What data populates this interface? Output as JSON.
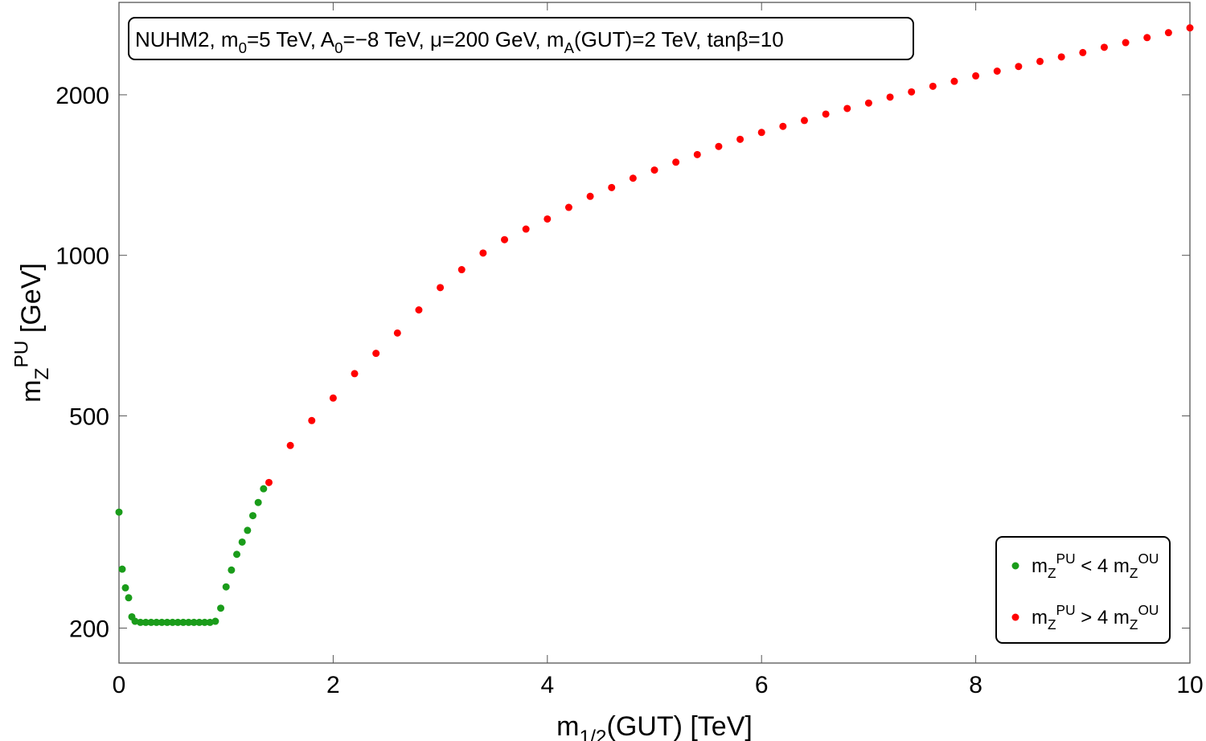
{
  "chart_data": {
    "type": "scatter",
    "title": "NUHM2, m_{0}=5 TeV, A_{0}=−8 TeV, μ=200 GeV, m_{A}(GUT)=2 TeV, tanβ=10",
    "x_label": "m_{1/2}(GUT) [TeV]",
    "y_label": "m_{Z}^{PU} [GeV]",
    "xlim": [
      0,
      10
    ],
    "ylim": [
      172,
      2980
    ],
    "log_y": true,
    "xticks": [
      0,
      2,
      4,
      6,
      8,
      10
    ],
    "yticks": [
      200,
      500,
      1000,
      2000
    ],
    "legend": "bottom-right",
    "series": [
      {
        "name": "m_{Z}^{PU} < 4 m_{Z}^{OU}",
        "color": "#1a9c1a",
        "x": [
          0,
          0.03,
          0.06,
          0.09,
          0.12,
          0.15,
          0.2,
          0.25,
          0.3,
          0.35,
          0.4,
          0.45,
          0.5,
          0.55,
          0.6,
          0.65,
          0.7,
          0.75,
          0.8,
          0.85,
          0.9,
          0.95,
          1.0,
          1.05,
          1.1,
          1.15,
          1.2,
          1.25,
          1.3,
          1.35
        ],
        "values": [
          330,
          258,
          238,
          228,
          210,
          206,
          205,
          205,
          205,
          205,
          205,
          205,
          205,
          205,
          205,
          205,
          205,
          205,
          205,
          205,
          206,
          218,
          239,
          257,
          275,
          290,
          305,
          325,
          344,
          365
        ]
      },
      {
        "name": "m_{Z}^{PU} > 4 m_{Z}^{OU}",
        "color": "#ff0000",
        "x": [
          1.4,
          1.6,
          1.8,
          2.0,
          2.2,
          2.4,
          2.6,
          2.8,
          3.0,
          3.2,
          3.4,
          3.6,
          3.8,
          4.0,
          4.2,
          4.4,
          4.6,
          4.8,
          5.0,
          5.2,
          5.4,
          5.6,
          5.8,
          6.0,
          6.2,
          6.4,
          6.6,
          6.8,
          7.0,
          7.2,
          7.4,
          7.6,
          7.8,
          8.0,
          8.2,
          8.4,
          8.6,
          8.8,
          9.0,
          9.2,
          9.4,
          9.6,
          9.8,
          10.0
        ],
        "values": [
          375,
          440,
          490,
          540,
          600,
          655,
          715,
          790,
          870,
          940,
          1010,
          1070,
          1120,
          1170,
          1230,
          1290,
          1340,
          1395,
          1445,
          1495,
          1545,
          1600,
          1650,
          1700,
          1745,
          1790,
          1840,
          1885,
          1930,
          1980,
          2025,
          2075,
          2120,
          2170,
          2215,
          2260,
          2310,
          2355,
          2400,
          2455,
          2505,
          2560,
          2615,
          2670
        ]
      }
    ]
  }
}
